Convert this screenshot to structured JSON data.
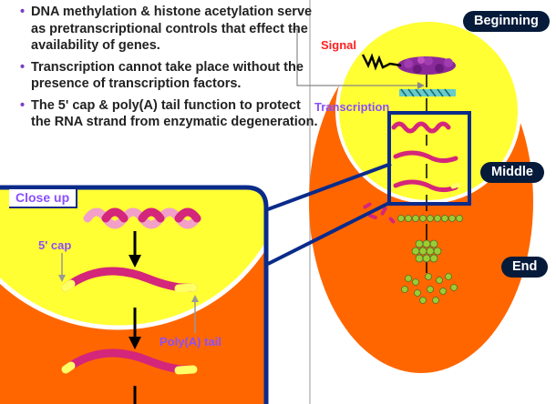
{
  "bullets": [
    "DNA methylation & histone acetylation serve as pretranscriptional controls that effect the availability of genes.",
    "Transcription cannot take place without the presence of transcription factors.",
    "The 5' cap & poly(A) tail function to protect the RNA strand from enzymatic degeneration."
  ],
  "bullet_marker": "•",
  "stages": {
    "beginning": "Beginning",
    "middle": "Middle",
    "end": "End"
  },
  "labels": {
    "signal": "Signal",
    "transcription": "Transcription",
    "close_up": "Close up",
    "five_cap": "5' cap",
    "polya_tail": "Poly(A) tail"
  },
  "colors": {
    "cell_orange": "#ff6600",
    "nucleus_yellow": "#ffff33",
    "frame_blue": "#0b2b8a",
    "rna_magenta": "#d4267a",
    "rna_pink": "#f2a0c8",
    "tag_navy": "#061a3a",
    "protein_green": "#9acd32"
  }
}
